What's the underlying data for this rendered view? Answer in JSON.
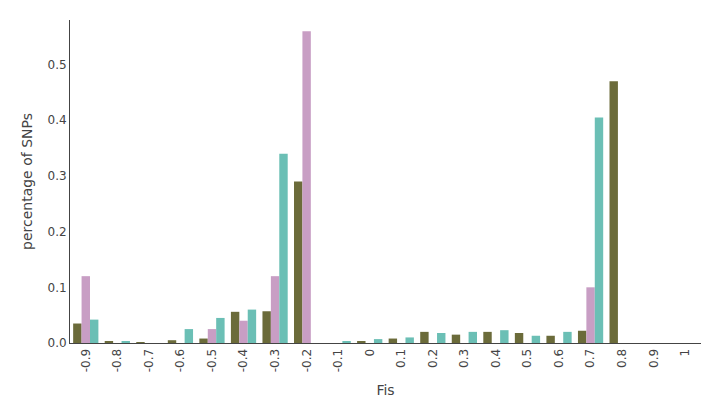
{
  "chart_data": {
    "type": "bar",
    "xlabel": "Fis",
    "ylabel": "percentage of SNPs",
    "categories": [
      "-0.9",
      "-0.8",
      "-0.7",
      "-0.6",
      "-0.5",
      "-0.4",
      "-0.3",
      "-0.2",
      "-0.1",
      "0",
      "0.1",
      "0.2",
      "0.3",
      "0.4",
      "0.5",
      "0.6",
      "0.7",
      "0.8",
      "0.9",
      "1"
    ],
    "series": [
      {
        "color": "#6B6B3A",
        "values": [
          0.035,
          0.002,
          0.001,
          0.005,
          0.008,
          0.056,
          0.057,
          0.29,
          0.0,
          0.002,
          0.008,
          0.02,
          0.015,
          0.02,
          0.018,
          0.013,
          0.022,
          0.47,
          0.0,
          0.0
        ]
      },
      {
        "color": "#C89EC4",
        "values": [
          0.12,
          0.0,
          0.0,
          0.0,
          0.025,
          0.04,
          0.12,
          0.56,
          0.0,
          0.0,
          0.0,
          0.0,
          0.0,
          0.0,
          0.0,
          0.0,
          0.1,
          0.0,
          0.0,
          0.0
        ]
      },
      {
        "color": "#6BBFB5",
        "values": [
          0.042,
          0.003,
          0.0,
          0.025,
          0.045,
          0.06,
          0.34,
          0.0,
          0.002,
          0.007,
          0.01,
          0.018,
          0.02,
          0.023,
          0.013,
          0.02,
          0.405,
          0.0,
          0.0,
          0.0
        ]
      }
    ],
    "ylim": [
      0,
      0.58
    ],
    "yticks": [
      {
        "value": 0,
        "label": "0.0"
      },
      0.1,
      0.2,
      0.3,
      0.4,
      0.5
    ],
    "grid": false
  }
}
